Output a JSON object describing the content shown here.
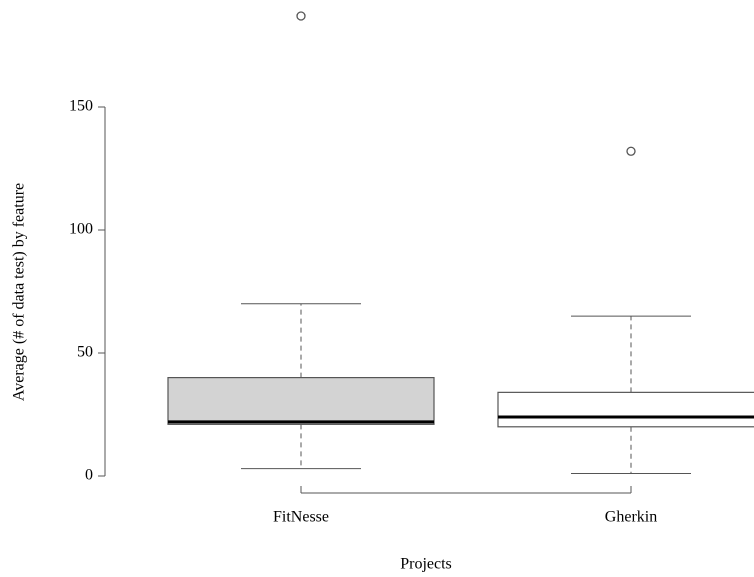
{
  "chart_data": {
    "type": "box",
    "xlabel": "Projects",
    "ylabel": "Average (# of data test) by feature",
    "categories": [
      "FitNesse",
      "Gherkin"
    ],
    "boxes": [
      {
        "min": 3,
        "q1": 21,
        "median": 22,
        "q3": 40,
        "max": 70,
        "outliers": [
          187
        ],
        "color": "#d3d3d3"
      },
      {
        "min": 1,
        "q1": 20,
        "median": 24,
        "q3": 34,
        "max": 65,
        "outliers": [
          132
        ],
        "color": "#ffffff"
      }
    ],
    "ylim": [
      0,
      190
    ],
    "yticks": [
      0,
      50,
      100,
      150
    ]
  }
}
